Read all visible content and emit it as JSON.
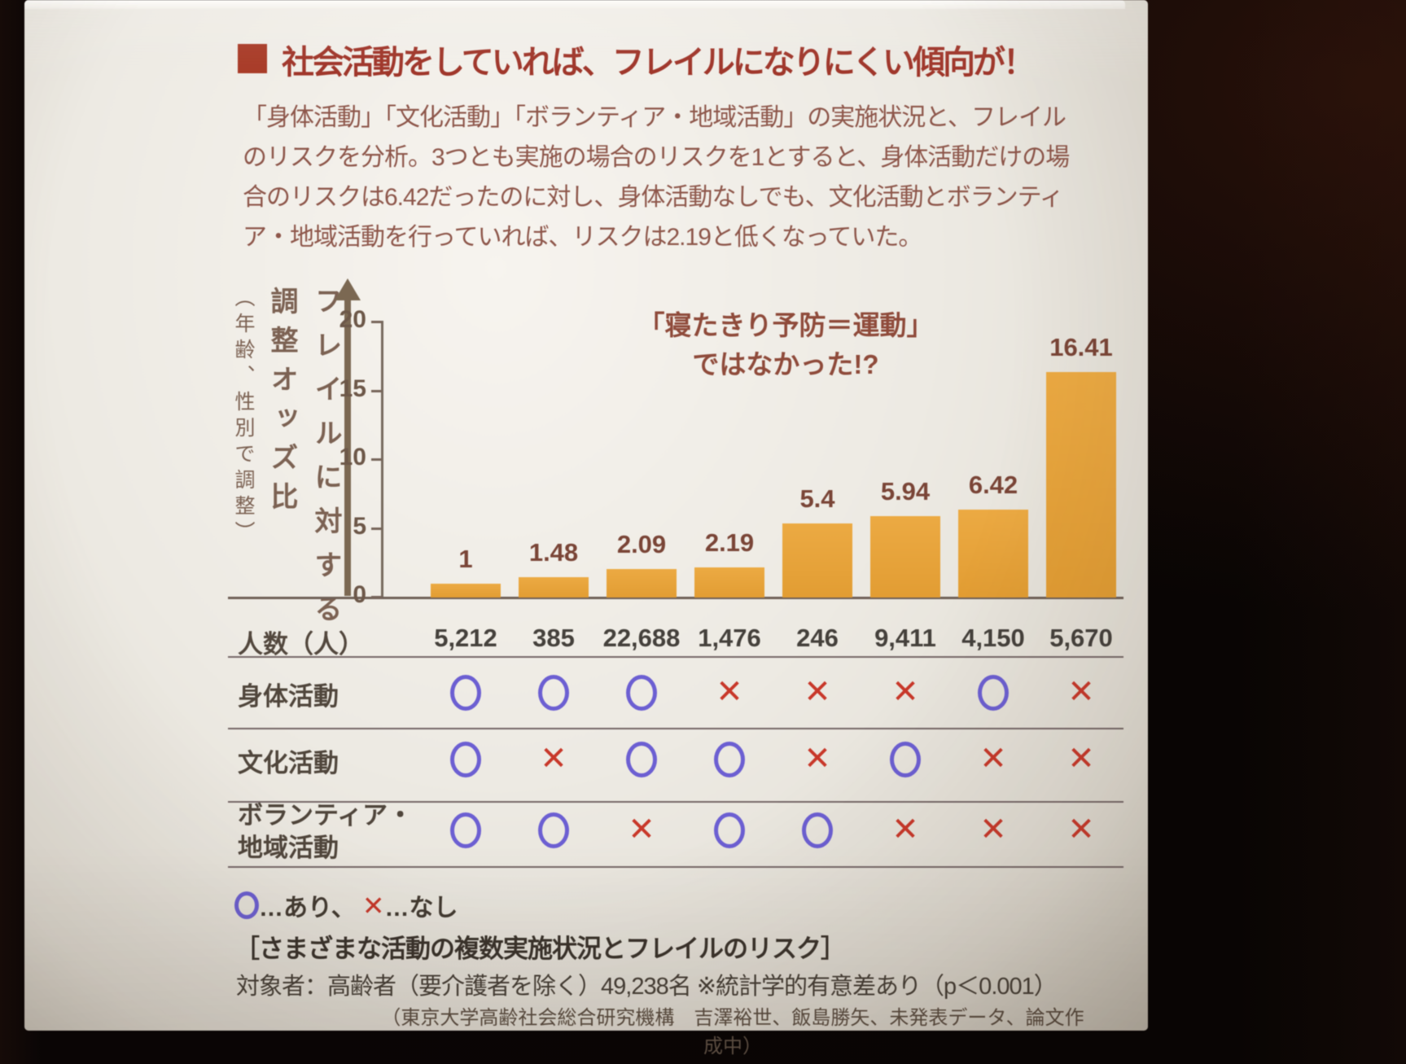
{
  "slide": {
    "title": "社会活動をしていれば、フレイルになりにくい傾向が！",
    "intro_lines": [
      "「身体活動」「文化活動」「ボランティア・地域活動」の実施状況と、フレイル",
      "のリスクを分析。3つとも実施の場合のリスクを1とすると、身体活動だけの場",
      "合のリスクは6.42だったのに対し、身体活動なしでも、文化活動とボランティ",
      "ア・地域活動を行っていれば、リスクは2.19と低くなっていた。"
    ]
  },
  "chart_data": {
    "type": "bar",
    "title": "さまざまな活動の複数実施状況とフレイルのリスク",
    "ylabel_line1": "フレイルに対する",
    "ylabel_line2": "調整オッズ比",
    "ylabel_sub": "（年齢、性別で調整）",
    "ylim": [
      0,
      20
    ],
    "yticks": [
      0,
      5,
      10,
      15,
      20
    ],
    "values": [
      1,
      1.48,
      2.09,
      2.19,
      5.4,
      5.94,
      6.42,
      16.41
    ],
    "value_labels": [
      "1",
      "1.48",
      "2.09",
      "2.19",
      "5.4",
      "5.94",
      "6.42",
      "16.41"
    ],
    "bar_color": "#e7a53c",
    "annotation_lines": [
      "「寝たきり予防＝運動」",
      "ではなかった!?"
    ],
    "counts_label": "人数（人）",
    "counts": [
      "5,212",
      "385",
      "22,688",
      "1,476",
      "246",
      "9,411",
      "4,150",
      "5,670"
    ],
    "rows": [
      {
        "label": "身体活動",
        "label2": "",
        "marks": [
          "o",
          "o",
          "o",
          "x",
          "x",
          "x",
          "o",
          "x"
        ]
      },
      {
        "label": "文化活動",
        "label2": "",
        "marks": [
          "o",
          "x",
          "o",
          "o",
          "x",
          "o",
          "x",
          "x"
        ]
      },
      {
        "label": "ボランティア・",
        "label2": "地域活動",
        "marks": [
          "o",
          "o",
          "x",
          "o",
          "o",
          "x",
          "x",
          "x"
        ]
      }
    ],
    "legend": {
      "circle_meaning": "…あり、",
      "cross_meaning": "…なし"
    },
    "mark_colors": {
      "circle": "#6c5fd2",
      "cross": "#c8382a"
    }
  },
  "footer": {
    "caption": "［さまざまな活動の複数実施状況とフレイルのリスク］",
    "subjects": "対象者：高齢者（要介護者を除く）49,238名 ※統計学的有意差あり（p＜0.001）",
    "source": "（東京大学高齢社会総合研究機構　吉澤裕世、飯島勝矢、未発表データ、論文作成中）"
  }
}
